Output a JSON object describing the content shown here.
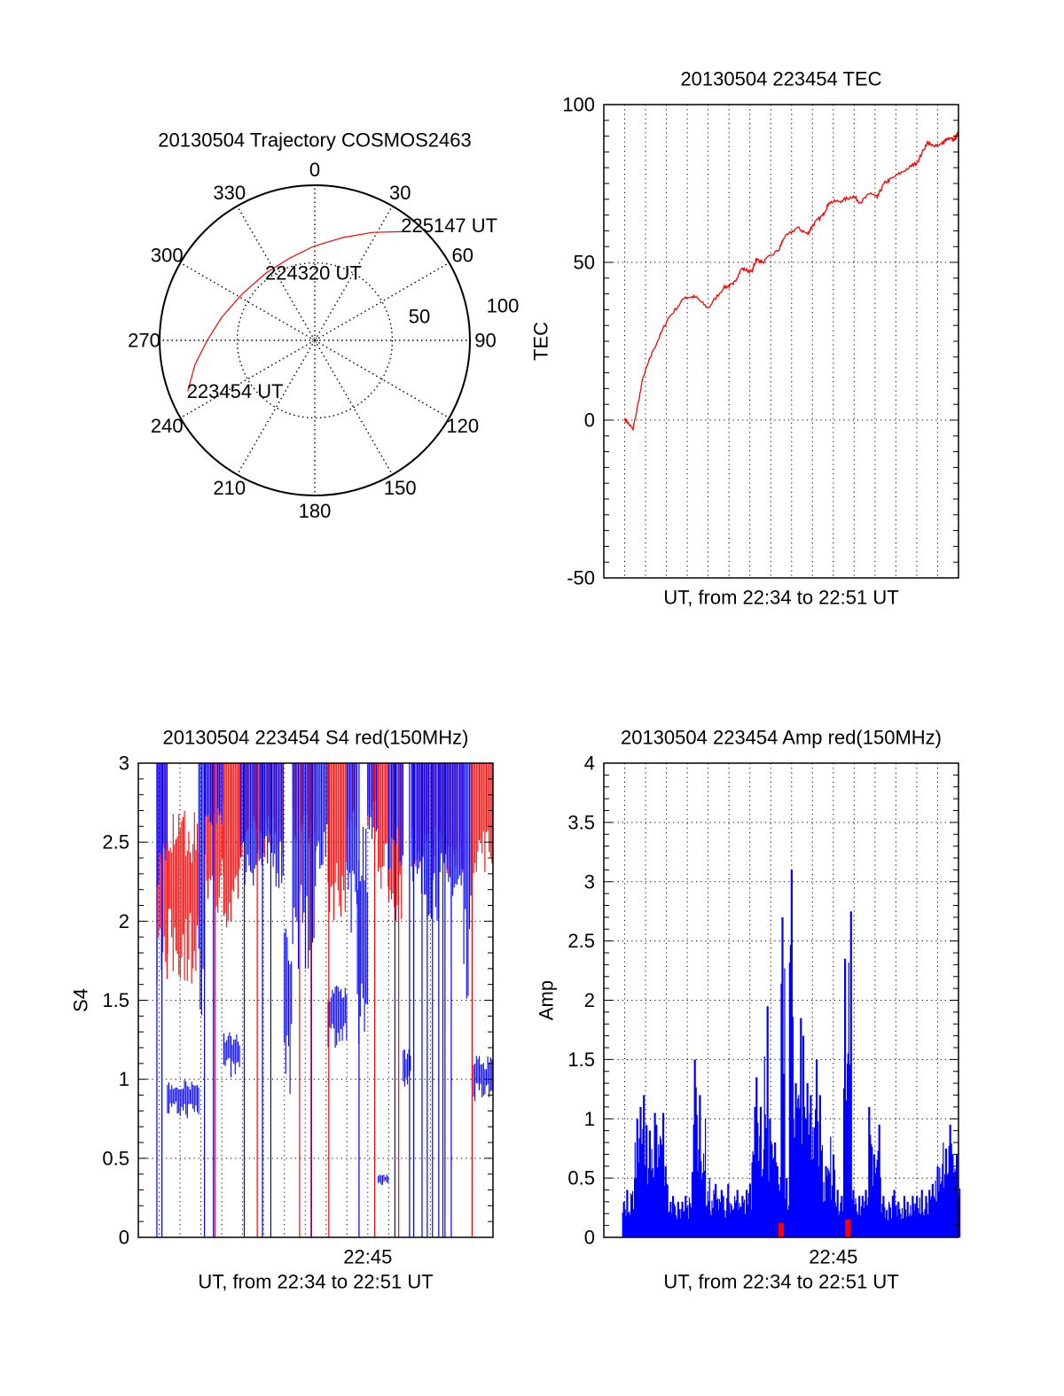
{
  "chart_data": [
    {
      "type": "polar",
      "title": "20130504 Trajectory COSMOS2463",
      "azimuths": [
        0,
        30,
        60,
        90,
        120,
        150,
        180,
        210,
        240,
        270,
        300,
        330
      ],
      "azimuth_labels": [
        "0",
        "30",
        "60",
        "90",
        "120",
        "150",
        "180",
        "210",
        "240",
        "270",
        "300",
        "330"
      ],
      "rmax": 100,
      "radial_rings": [
        50
      ],
      "radial_labels": [
        "50",
        "100"
      ],
      "radial_values": [
        50,
        100
      ],
      "trajectory": {
        "color": "#ff0000",
        "az": [
          248.2,
          258.6,
          269.7,
          283.9,
          302.8,
          324.1,
          343.0,
          359.1,
          15.3,
          28.1,
          38.7
        ],
        "r": [
          88.2,
          78.7,
          69.5,
          61.8,
          55.5,
          53.6,
          55.4,
          60.6,
          68.7,
          78.9,
          89.8
        ]
      },
      "time_labels": [
        {
          "text": "223454 UT",
          "az": 248.2,
          "r": 88.2
        },
        {
          "text": "224320 UT",
          "az": 324.1,
          "r": 53.6
        },
        {
          "text": "225147 UT",
          "az": 38.7,
          "r": 89.8
        }
      ]
    },
    {
      "type": "line",
      "title": "20130504 223454 TEC",
      "xlabel": "UT, from 22:34 to 22:51 UT",
      "ylabel": "TEC",
      "x_units": "minutes after 22:34",
      "xlim": [
        0,
        17
      ],
      "ylim": [
        -50,
        100
      ],
      "yticks": [
        -50,
        0,
        50,
        100
      ],
      "ytick_labels": [
        "-50",
        "0",
        "50",
        "100"
      ],
      "y_minor_step": 5,
      "x_grid": [
        1,
        2,
        3,
        4,
        5,
        6,
        7,
        8,
        9,
        10,
        11,
        12,
        13,
        14,
        15,
        16
      ],
      "xticks": [],
      "xtick_labels": [],
      "grid": true,
      "series": [
        {
          "name": "TEC",
          "color": "#ff0000",
          "x": [
            1.0,
            1.4,
            1.9,
            2.36,
            3.06,
            3.9,
            4.4,
            5.0,
            5.74,
            6.2,
            6.6,
            7.1,
            7.3,
            7.6,
            8.4,
            8.6,
            9.27,
            9.76,
            10.04,
            10.5,
            10.8,
            11.4,
            11.95,
            12.3,
            12.8,
            13.1,
            13.43,
            13.9,
            14.63,
            15.05,
            15.5,
            15.7,
            16.2,
            16.45,
            16.8,
            17.0
          ],
          "y": [
            0.5,
            -3,
            14,
            22,
            32,
            39,
            39,
            35.5,
            42,
            43,
            48,
            47,
            51,
            50,
            54,
            57.5,
            61,
            59,
            62,
            65,
            69,
            69.5,
            71,
            69,
            72,
            70.5,
            75,
            77,
            80,
            82,
            88,
            87,
            87.5,
            89,
            89,
            91
          ]
        }
      ]
    },
    {
      "type": "line",
      "title": "20130504 223454 S4 red(150MHz)",
      "xlabel": "UT, from 22:34 to 22:51 UT",
      "ylabel": "S4",
      "x_units": "minutes after 22:34",
      "xlim": [
        0,
        17
      ],
      "ylim": [
        0,
        3
      ],
      "yticks": [
        0,
        0.5,
        1,
        1.5,
        2,
        2.5,
        3
      ],
      "ytick_labels": [
        "0",
        "0.5",
        "1",
        "1.5",
        "2",
        "2.5",
        "3"
      ],
      "y_minor_step": 0.1,
      "x_grid": [
        1,
        2,
        3,
        4,
        5,
        6,
        7,
        8,
        9,
        10,
        11,
        12,
        13,
        14,
        15,
        16
      ],
      "xticks": [
        11
      ],
      "xtick_labels": [
        "22:45"
      ],
      "grid": true,
      "series_colors": {
        "red": "#ff0000",
        "blue": "#0000ff"
      },
      "segments": [
        {
          "x0": 0.9,
          "x1": 1.4,
          "blue": [
            2.2,
            3
          ],
          "red": [
            1.6,
            3
          ]
        },
        {
          "x0": 1.4,
          "x1": 2.9,
          "blue": [
            0.75,
            1.0
          ],
          "red": [
            1.6,
            2.7
          ]
        },
        {
          "x0": 2.9,
          "x1": 3.2,
          "blue": [
            1.2,
            3
          ],
          "red": null
        },
        {
          "x0": 3.2,
          "x1": 4.1,
          "blue": [
            2.6,
            3
          ],
          "red": [
            2.0,
            3
          ]
        },
        {
          "x0": 4.1,
          "x1": 4.9,
          "blue": [
            1.0,
            1.3
          ],
          "red": [
            1.9,
            3
          ]
        },
        {
          "x0": 4.9,
          "x1": 7.0,
          "blue": [
            2.2,
            3
          ],
          "red": [
            2.4,
            3
          ]
        },
        {
          "x0": 7.0,
          "x1": 7.4,
          "blue": [
            0.9,
            2.0
          ],
          "red": null
        },
        {
          "x0": 7.4,
          "x1": 8.5,
          "blue": [
            1.6,
            3
          ],
          "red": [
            2.5,
            3
          ]
        },
        {
          "x0": 8.5,
          "x1": 9.1,
          "blue": [
            2.3,
            3
          ],
          "red": null
        },
        {
          "x0": 9.1,
          "x1": 10.0,
          "blue": [
            1.2,
            1.6
          ],
          "red": [
            2.0,
            3
          ]
        },
        {
          "x0": 10.0,
          "x1": 10.5,
          "blue": [
            1.8,
            3
          ],
          "red": [
            2.5,
            3
          ]
        },
        {
          "x0": 10.5,
          "x1": 11.0,
          "blue": [
            1.1,
            2.6
          ],
          "red": null
        },
        {
          "x0": 11.0,
          "x1": 11.5,
          "blue": [
            2.5,
            3
          ],
          "red": [
            2.6,
            3
          ]
        },
        {
          "x0": 11.5,
          "x1": 12.0,
          "blue": [
            0.33,
            0.4
          ],
          "red": [
            2.2,
            3
          ]
        },
        {
          "x0": 12.0,
          "x1": 12.7,
          "blue": [
            2.3,
            3
          ],
          "red": [
            2.0,
            3
          ]
        },
        {
          "x0": 12.7,
          "x1": 13.1,
          "blue": [
            0.95,
            1.2
          ],
          "red": null
        },
        {
          "x0": 13.1,
          "x1": 15.6,
          "blue": [
            2.0,
            3
          ],
          "red": [
            2.3,
            3
          ]
        },
        {
          "x0": 15.6,
          "x1": 16.0,
          "blue": [
            1.5,
            3
          ],
          "red": null
        },
        {
          "x0": 16.0,
          "x1": 17.0,
          "blue": [
            0.85,
            1.15
          ],
          "red": [
            2.3,
            3
          ]
        }
      ],
      "dropouts_blue": [
        0.89,
        1.13,
        3.17,
        3.6,
        5.08,
        5.95,
        6.35,
        8.3,
        10.58,
        12.3,
        13.0,
        13.2,
        13.6,
        13.85,
        14.1,
        14.4,
        14.6,
        14.7,
        15.0
      ],
      "dropouts_red": [
        3.67,
        5.7,
        7.73,
        8.28,
        9.13,
        11.33,
        12.48,
        16.0
      ]
    },
    {
      "type": "bar",
      "title": "20130504 223454 Amp red(150MHz)",
      "xlabel": "UT, from 22:34 to 22:51 UT",
      "ylabel": "Amp",
      "x_units": "minutes after 22:34",
      "xlim": [
        0,
        17
      ],
      "ylim": [
        0,
        4
      ],
      "yticks": [
        0,
        0.5,
        1,
        1.5,
        2,
        2.5,
        3,
        3.5,
        4
      ],
      "ytick_labels": [
        "0",
        "0.5",
        "1",
        "1.5",
        "2",
        "2.5",
        "3",
        "3.5",
        "4"
      ],
      "y_minor_step": 0.1,
      "x_grid": [
        1,
        2,
        3,
        4,
        5,
        6,
        7,
        8,
        9,
        10,
        11,
        12,
        13,
        14,
        15,
        16
      ],
      "xticks": [
        11
      ],
      "xtick_labels": [
        "22:45"
      ],
      "grid": true,
      "series": [
        {
          "name": "blue",
          "color": "#0000ff",
          "x_start": 0.9,
          "x_step": 0.2,
          "values": [
            0.3,
            0.4,
            0.5,
            1.0,
            1.1,
            1.2,
            0.9,
            1.05,
            0.95,
            1.05,
            0.6,
            0.3,
            0.35,
            0.3,
            0.3,
            0.35,
            0.55,
            1.5,
            1.2,
            1.0,
            0.5,
            0.4,
            0.45,
            0.4,
            0.35,
            0.45,
            0.35,
            0.4,
            0.35,
            0.4,
            0.45,
            1.1,
            1.35,
            1.1,
            1.95,
            1.0,
            0.8,
            0.6,
            2.7,
            0.5,
            3.1,
            1.3,
            1.85,
            1.7,
            1.3,
            1.2,
            1.5,
            1.2,
            0.6,
            0.85,
            0.7,
            0.4,
            0.35,
            2.35,
            2.75,
            0.4,
            0.35,
            0.35,
            0.4,
            1.1,
            0.7,
            0.95,
            0.35,
            0.3,
            0.35,
            0.4,
            0.3,
            0.35,
            0.3,
            0.35,
            0.35,
            0.4,
            0.35,
            0.4,
            0.45,
            0.6,
            0.8,
            0.75,
            0.95,
            0.7,
            0.7
          ]
        },
        {
          "name": "red",
          "color": "#ff0000",
          "x": [
            8.5,
            11.7
          ],
          "values": [
            0.12,
            0.15
          ]
        }
      ]
    }
  ]
}
